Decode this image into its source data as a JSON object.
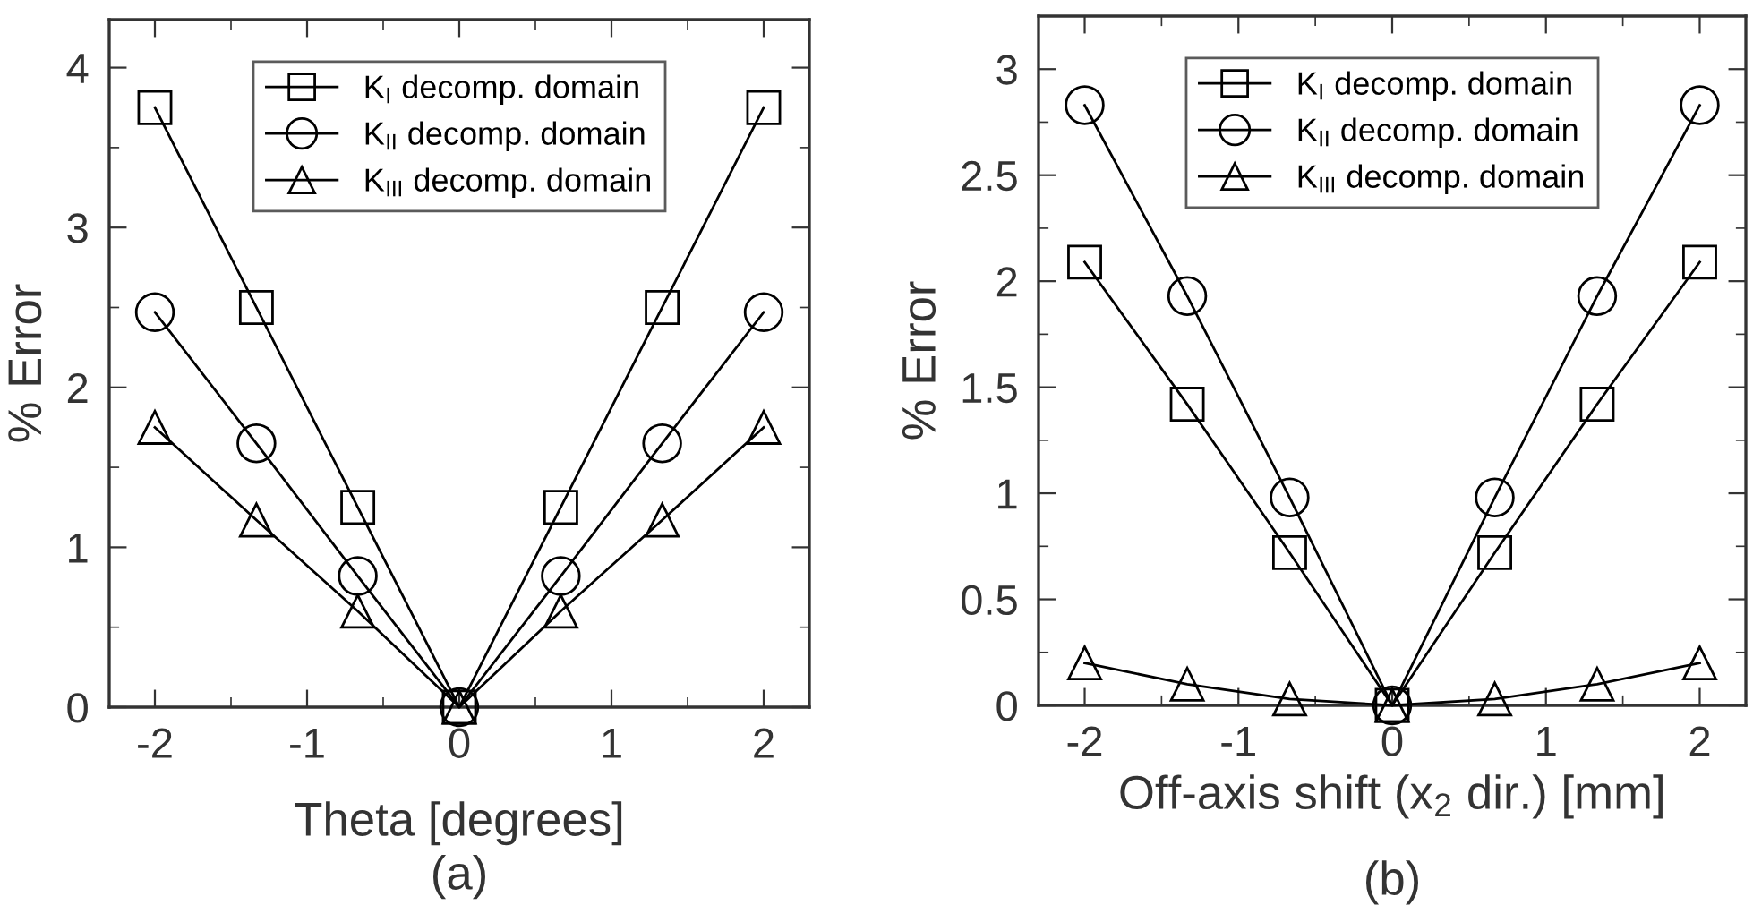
{
  "chart_data": [
    {
      "type": "line",
      "xlabel": "Theta [degrees]",
      "ylabel": "% Error",
      "annotations": [
        "(a)"
      ],
      "x": [
        -2,
        -1.333,
        -0.667,
        0,
        0.667,
        1.333,
        2
      ],
      "xlim": [
        -2.3,
        2.3
      ],
      "xticks": [
        -2,
        -1,
        0,
        1,
        2
      ],
      "ylim": [
        0,
        4.3
      ],
      "yticks": [
        0,
        1,
        2,
        3,
        4
      ],
      "legend": "top",
      "grid": false,
      "series": [
        {
          "name": "K$_{I}$ decomp. domain",
          "color": "#000000",
          "marker": "square",
          "values": [
            3.75,
            2.5,
            1.25,
            0,
            1.25,
            2.5,
            3.75
          ]
        },
        {
          "name": "K$_{II}$ decomp. domain",
          "color": "#000000",
          "marker": "circle",
          "values": [
            2.47,
            1.65,
            0.82,
            0,
            0.82,
            1.65,
            2.47
          ]
        },
        {
          "name": "K$_{III}$ decomp. domain",
          "color": "#000000",
          "marker": "triangle",
          "values": [
            1.75,
            1.17,
            0.6,
            0,
            0.6,
            1.17,
            1.75
          ]
        }
      ]
    },
    {
      "type": "line",
      "xlabel": "Off-axis shift (x$_{2}$ dir.) [mm]",
      "ylabel": "% Error",
      "annotations": [
        "(b)"
      ],
      "x": [
        -2,
        -1.333,
        -0.667,
        0,
        0.667,
        1.333,
        2
      ],
      "xlim": [
        -2.3,
        2.3
      ],
      "xticks": [
        -2,
        -1,
        0,
        1,
        2
      ],
      "ylim": [
        0,
        3.25
      ],
      "yticks": [
        0,
        0.5,
        1,
        1.5,
        2,
        2.5,
        3
      ],
      "legend": "top",
      "grid": false,
      "series": [
        {
          "name": "K$_{I}$ decomp. domain",
          "color": "#000000",
          "marker": "square",
          "values": [
            2.09,
            1.42,
            0.72,
            0,
            0.72,
            1.42,
            2.09
          ]
        },
        {
          "name": "K$_{II}$ decomp. domain",
          "color": "#000000",
          "marker": "circle",
          "values": [
            2.83,
            1.93,
            0.98,
            0,
            0.98,
            1.93,
            2.83
          ]
        },
        {
          "name": "K$_{III}$ decomp. domain",
          "color": "#000000",
          "marker": "triangle",
          "values": [
            0.2,
            0.1,
            0.03,
            0,
            0.03,
            0.1,
            0.2
          ]
        }
      ]
    }
  ]
}
